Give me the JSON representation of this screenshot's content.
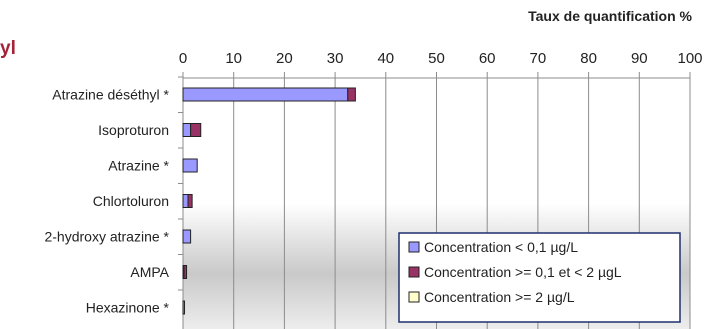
{
  "fragment_text": "yl",
  "chart_data": {
    "type": "bar",
    "orientation": "horizontal",
    "stacked": true,
    "title": "",
    "xlabel": "Taux de quantification %",
    "xlim": [
      0,
      100
    ],
    "x_ticks": [
      0,
      10,
      20,
      30,
      40,
      50,
      60,
      70,
      80,
      90,
      100
    ],
    "x_axis_position": "top",
    "grid": true,
    "legend_position": "bottom-right",
    "categories": [
      "Atrazine déséthyl *",
      "Isoproturon",
      "Atrazine *",
      "Chlortoluron",
      "2-hydroxy atrazine *",
      "AMPA",
      "Hexazinone *"
    ],
    "series": [
      {
        "name": "Concentration < 0,1 µg/L",
        "color": "#9999ff",
        "values": [
          32.5,
          1.5,
          2.8,
          1.0,
          1.5,
          0.2,
          0.3
        ]
      },
      {
        "name": "Concentration >= 0,1 et < 2 µgL",
        "color": "#993366",
        "values": [
          1.5,
          2.0,
          0,
          0.8,
          0,
          0.5,
          0
        ]
      },
      {
        "name": "Concentration >= 2 µg/L",
        "color": "#ffffcc",
        "values": [
          0,
          0,
          0,
          0,
          0,
          0,
          0
        ]
      }
    ]
  }
}
